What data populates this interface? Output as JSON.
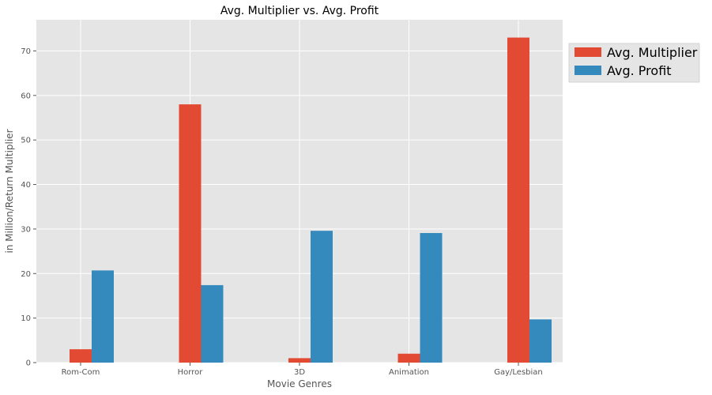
{
  "chart_data": {
    "type": "bar",
    "title": "Avg. Multiplier vs. Avg. Profit",
    "xlabel": "Movie Genres",
    "ylabel": "in Million/Return Multiplier",
    "categories": [
      "Rom-Com",
      "Horror",
      "3D",
      "Animation",
      "Gay/Lesbian"
    ],
    "series": [
      {
        "name": "Avg. Multiplier",
        "color": "#E24A33",
        "values": [
          3,
          58,
          1,
          2,
          73
        ]
      },
      {
        "name": "Avg. Profit",
        "color": "#348ABD",
        "values": [
          20.7,
          17.4,
          29.6,
          29.1,
          9.7
        ]
      }
    ],
    "ylim": [
      0,
      77
    ],
    "yticks": [
      0,
      10,
      20,
      30,
      40,
      50,
      60,
      70
    ],
    "grid": true,
    "legend": "top-right, outside plot"
  }
}
